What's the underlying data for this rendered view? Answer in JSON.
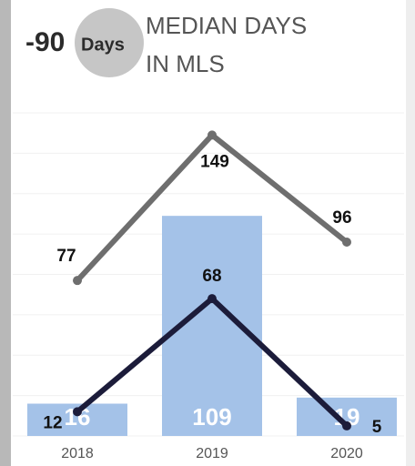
{
  "chart_data": {
    "type": "bar",
    "title_lines": [
      "MEDIAN DAYS",
      "IN MLS"
    ],
    "kpi": {
      "value": -90,
      "unit": "Days"
    },
    "categories": [
      "2018",
      "2019",
      "2020"
    ],
    "series": [
      {
        "type": "bar",
        "color": "#a4c2e8",
        "values": [
          16,
          109,
          19
        ]
      },
      {
        "type": "line",
        "color": "#6e6e6e",
        "values": [
          77,
          149,
          96
        ]
      },
      {
        "type": "line",
        "color": "#1c1c3a",
        "values": [
          12,
          68,
          5
        ]
      }
    ],
    "ylim": [
      0,
      160
    ],
    "yticks": [
      0,
      20,
      40,
      60,
      80,
      100,
      120,
      140,
      160
    ],
    "grid": true
  }
}
